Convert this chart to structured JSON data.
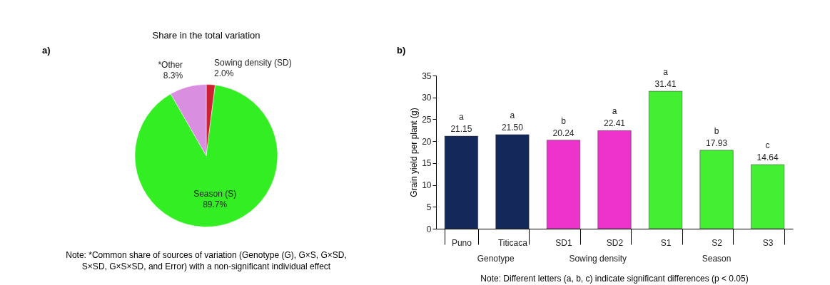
{
  "chart_data": [
    {
      "type": "pie",
      "title": "Share in the total variation",
      "categories": [
        "Sowing density (SD)",
        "Season (S)",
        "*Other"
      ],
      "values": [
        2.0,
        89.7,
        8.3
      ],
      "value_labels": [
        "2.0%",
        "89.7%",
        "8.3%"
      ],
      "colors": [
        "#cc2233",
        "#33ee22",
        "#d98ee0"
      ],
      "annotations": [
        "a)",
        "Note: *Common share of sources of variation (Genotype (G), G×S, G×SD, S×SD, G×S×SD, and Error) with a non-significant individual effect"
      ]
    },
    {
      "type": "bar",
      "ylabel": "Grain yield per plant (g)",
      "categories": [
        "Puno",
        "Titicaca",
        "SD1",
        "SD2",
        "S1",
        "S2",
        "S3"
      ],
      "values": [
        21.15,
        21.5,
        20.24,
        22.41,
        31.41,
        17.93,
        14.64
      ],
      "colors": [
        "#14285a",
        "#14285a",
        "#ee33cc",
        "#ee33cc",
        "#44ee33",
        "#44ee33",
        "#44ee33"
      ],
      "ylim": [
        0,
        35
      ],
      "yticks": [
        0,
        5,
        10,
        15,
        20,
        25,
        30,
        35
      ],
      "grid": false,
      "value_labels": [
        "21.15",
        "21.50",
        "20.24",
        "22.41",
        "31.41",
        "17.93",
        "14.64"
      ],
      "annotations": [
        "b)",
        "Genotype",
        "Sowing density",
        "Season",
        {
          "text": "a",
          "x": "Puno",
          "y": 21.15
        },
        {
          "text": "a",
          "x": "Titicaca",
          "y": 21.5
        },
        {
          "text": "b",
          "x": "SD1",
          "y": 20.24
        },
        {
          "text": "a",
          "x": "SD2",
          "y": 22.41
        },
        {
          "text": "a",
          "x": "S1",
          "y": 31.41
        },
        {
          "text": "b",
          "x": "S2",
          "y": 17.93
        },
        {
          "text": "c",
          "x": "S3",
          "y": 14.64
        },
        "Note:  Different letters (a, b, c) indicate significant differences (p < 0.05)"
      ]
    }
  ]
}
